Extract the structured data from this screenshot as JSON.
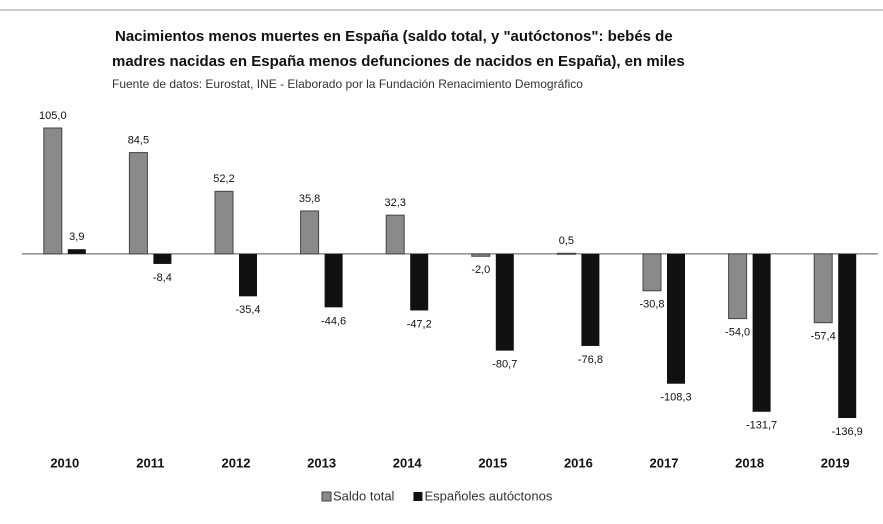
{
  "chart_data": {
    "type": "bar",
    "title_lines": [
      "Nacimientos  menos muertes en España (saldo total, y \"autóctonos\": bebés de",
      "madres nacidas  en España  menos defunciones de nacidos  en España), en miles"
    ],
    "subtitle": "Fuente de datos: Eurostat, INE  -  Elaborado por la Fundación Renacimiento Demográfico",
    "categories": [
      "2010",
      "2011",
      "2012",
      "2013",
      "2014",
      "2015",
      "2016",
      "2017",
      "2018",
      "2019"
    ],
    "series": [
      {
        "name": "Saldo total",
        "color": "#8a8a8a",
        "values": [
          105.0,
          84.5,
          52.2,
          35.8,
          32.3,
          -2.0,
          0.5,
          -30.8,
          -54.0,
          -57.4
        ],
        "value_labels": [
          "105,0",
          "84,5",
          "52,2",
          "35,8",
          "32,3",
          "-2,0",
          "0,5",
          "-30,8",
          "-54,0",
          "-57,4"
        ]
      },
      {
        "name": "Españoles autóctonos",
        "color": "#111111",
        "values": [
          3.9,
          -8.4,
          -35.4,
          -44.6,
          -47.2,
          -80.7,
          -76.8,
          -108.3,
          -131.7,
          -136.9
        ],
        "value_labels": [
          "3,9",
          "-8,4",
          "-35,4",
          "-44,6",
          "-47,2",
          "-80,7",
          "-76,8",
          "-108,3",
          "-131,7",
          "-136,9"
        ]
      }
    ]
  }
}
